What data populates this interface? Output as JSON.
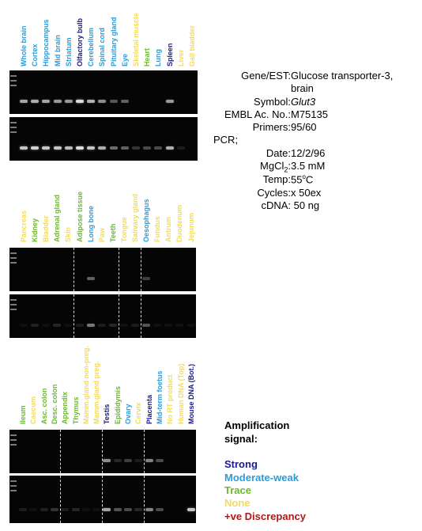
{
  "colors": {
    "strong": "#1a1a8c",
    "moderate_weak": "#2d9bd8",
    "trace": "#6ab82e",
    "none": "#f2dc5a",
    "discrepancy": "#b01818"
  },
  "panels": [
    {
      "lanes": [
        {
          "label": "Whole brain",
          "level": "moderate_weak"
        },
        {
          "label": "Cortex",
          "level": "moderate_weak"
        },
        {
          "label": "Hippocampus",
          "level": "moderate_weak"
        },
        {
          "label": "Mid brain",
          "level": "moderate_weak"
        },
        {
          "label": "Striatum",
          "level": "moderate_weak"
        },
        {
          "label": "Olfactory bulb",
          "level": "strong"
        },
        {
          "label": "Cerebellum",
          "level": "moderate_weak"
        },
        {
          "label": "Spinal cord",
          "level": "moderate_weak"
        },
        {
          "label": "Pituitary gland",
          "level": "moderate_weak"
        },
        {
          "label": "Eye",
          "level": "moderate_weak"
        },
        {
          "label": "Skeletal muscle",
          "level": "none"
        },
        {
          "label": "Heart",
          "level": "trace"
        },
        {
          "label": "Lung",
          "level": "moderate_weak"
        },
        {
          "label": "Spleen",
          "level": "strong"
        },
        {
          "label": "Liver",
          "level": "none"
        },
        {
          "label": "Gall bladder",
          "level": "none"
        }
      ],
      "top_bands": [
        0.7,
        0.75,
        0.7,
        0.65,
        0.65,
        0.95,
        0.75,
        0.6,
        0.35,
        0.4,
        0,
        0,
        0,
        0.65,
        0,
        0
      ],
      "bottom_bands": [
        0.85,
        0.9,
        0.85,
        0.85,
        0.8,
        0.95,
        0.85,
        0.75,
        0.45,
        0.4,
        0.2,
        0.3,
        0.3,
        0.75,
        0.1,
        0
      ]
    },
    {
      "lanes": [
        {
          "label": "Pancreas",
          "level": "none"
        },
        {
          "label": "Kidney",
          "level": "trace"
        },
        {
          "label": "Bladder",
          "level": "none"
        },
        {
          "label": "Adrenal gland",
          "level": "trace"
        },
        {
          "label": "Skin",
          "level": "none"
        },
        {
          "label": "Adipose tissue",
          "level": "trace"
        },
        {
          "label": "Long bone",
          "level": "moderate_weak"
        },
        {
          "label": "Paw",
          "level": "none"
        },
        {
          "label": "Teeth",
          "level": "trace"
        },
        {
          "label": "Tongue",
          "level": "none"
        },
        {
          "label": "Salivary gland",
          "level": "none"
        },
        {
          "label": "Oesophagus",
          "level": "moderate_weak"
        },
        {
          "label": "Fundus",
          "level": "none"
        },
        {
          "label": "Antrum",
          "level": "none"
        },
        {
          "label": "Duodenum",
          "level": "none"
        },
        {
          "label": "Jejunum",
          "level": "none"
        }
      ],
      "top_bands": [
        0,
        0,
        0,
        0,
        0,
        0,
        0.4,
        0,
        0,
        0,
        0,
        0.25,
        0,
        0,
        0,
        0
      ],
      "bottom_bands": [
        0.05,
        0.12,
        0.05,
        0.15,
        0.05,
        0.1,
        0.5,
        0.1,
        0.15,
        0.05,
        0.1,
        0.35,
        0.05,
        0.05,
        0.05,
        0.05
      ]
    },
    {
      "lanes": [
        {
          "label": "Ileum",
          "level": "trace"
        },
        {
          "label": "Caecum",
          "level": "none"
        },
        {
          "label": "Asc. colon",
          "level": "trace"
        },
        {
          "label": "Desc. colon",
          "level": "trace"
        },
        {
          "label": "Appendix",
          "level": "trace"
        },
        {
          "label": "Thymus",
          "level": "trace"
        },
        {
          "label": "Mamm.gland non-preg.",
          "level": "none"
        },
        {
          "label": "Mamm.gland preg.",
          "level": "none"
        },
        {
          "label": "Testis",
          "level": "strong"
        },
        {
          "label": "Epididymis",
          "level": "trace"
        },
        {
          "label": "Ovary",
          "level": "moderate_weak"
        },
        {
          "label": "Cervix",
          "level": "none"
        },
        {
          "label": "Placenta",
          "level": "strong"
        },
        {
          "label": "Mid-term foetus",
          "level": "moderate_weak"
        },
        {
          "label": "No RT product",
          "level": "none"
        },
        {
          "label": "Human DNA (Top)",
          "level": "none"
        },
        {
          "label": "Mouse DNA (Bot.)",
          "level": "strong"
        }
      ],
      "top_bands": [
        0,
        0,
        0,
        0,
        0,
        0,
        0,
        0,
        0.6,
        0.15,
        0.25,
        0.1,
        0.55,
        0.3,
        0,
        0,
        0
      ],
      "bottom_bands": [
        0.1,
        0.05,
        0.12,
        0.2,
        0.1,
        0.15,
        0.05,
        0.05,
        0.7,
        0.35,
        0.3,
        0.15,
        0.55,
        0.3,
        0,
        0,
        0.85
      ]
    }
  ],
  "info": {
    "gene_est_key": "Gene/EST:",
    "gene_est_value": "Glucose transporter-3,",
    "gene_est_value_2": "brain",
    "symbol_key": "Symbol:",
    "symbol_value": "Glut3",
    "embl_key": "EMBL Ac. No.:",
    "embl_value": "M75135",
    "primers_key": "Primers:",
    "primers_value": "95/60",
    "pcr_label": "PCR;",
    "date_key": "Date:",
    "date_value": "12/2/96",
    "mgcl_key_main": "MgCl",
    "mgcl_key_sub": "2",
    "mgcl_key_colon": ":",
    "mgcl_value": "3.5 mM",
    "temp_key": "Temp:",
    "temp_value_num": "55",
    "temp_value_sup": "o",
    "temp_value_unit": "C",
    "cycles_key": "Cycles:",
    "cycles_value": "x 50ex",
    "cdna_key": "cDNA:",
    "cdna_value": " 50 ng"
  },
  "legend": {
    "title_1": "Amplification",
    "title_2": "signal:",
    "strong": "Strong",
    "moderate_weak": "Moderate-weak",
    "trace": "Trace",
    "none": "None",
    "discrepancy": "+ve Discrepancy"
  }
}
